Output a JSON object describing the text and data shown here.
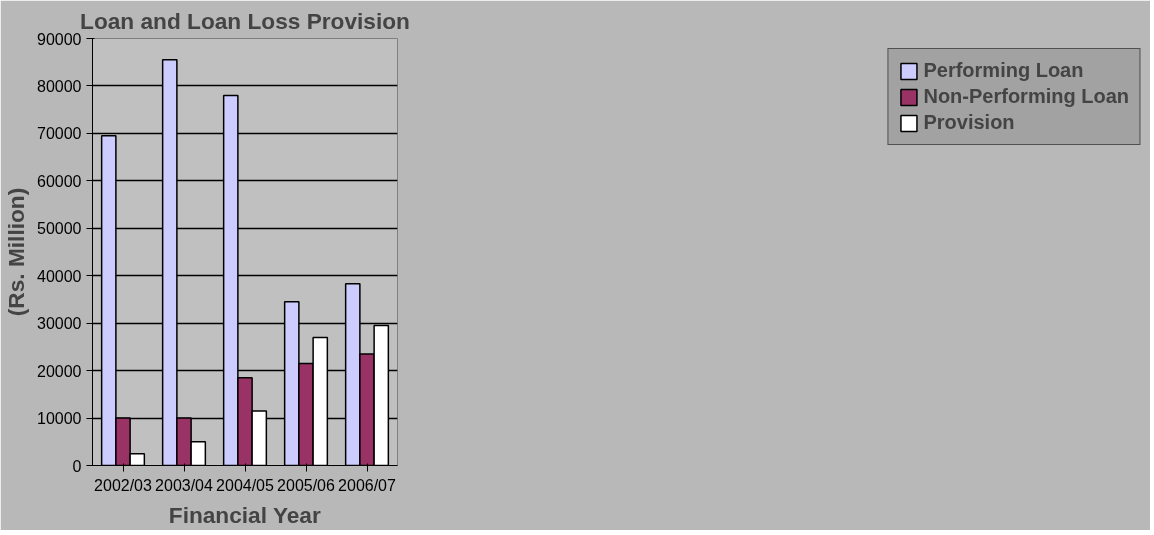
{
  "chart_data": {
    "type": "bar",
    "title": "Loan and Loan Loss Provision",
    "xlabel": "Financial Year",
    "ylabel": "(Rs. Million)",
    "categories": [
      "2002/03",
      "2003/04",
      "2004/05",
      "2005/06",
      "2006/07"
    ],
    "series": [
      {
        "name": "Performing Loan",
        "color": "#ccccff",
        "values": [
          69500,
          85500,
          78000,
          34500,
          38300
        ]
      },
      {
        "name": "Non-Performing Loan",
        "color": "#993366",
        "values": [
          10000,
          10000,
          18500,
          21500,
          23500
        ]
      },
      {
        "name": "Provision",
        "color": "#ffffff",
        "values": [
          2500,
          5000,
          11500,
          27000,
          29500
        ]
      }
    ],
    "ylim": [
      0,
      90000
    ],
    "yticks": [
      0,
      10000,
      20000,
      30000,
      40000,
      50000,
      60000,
      70000,
      80000,
      90000
    ],
    "grid": "y",
    "legend": "right"
  }
}
